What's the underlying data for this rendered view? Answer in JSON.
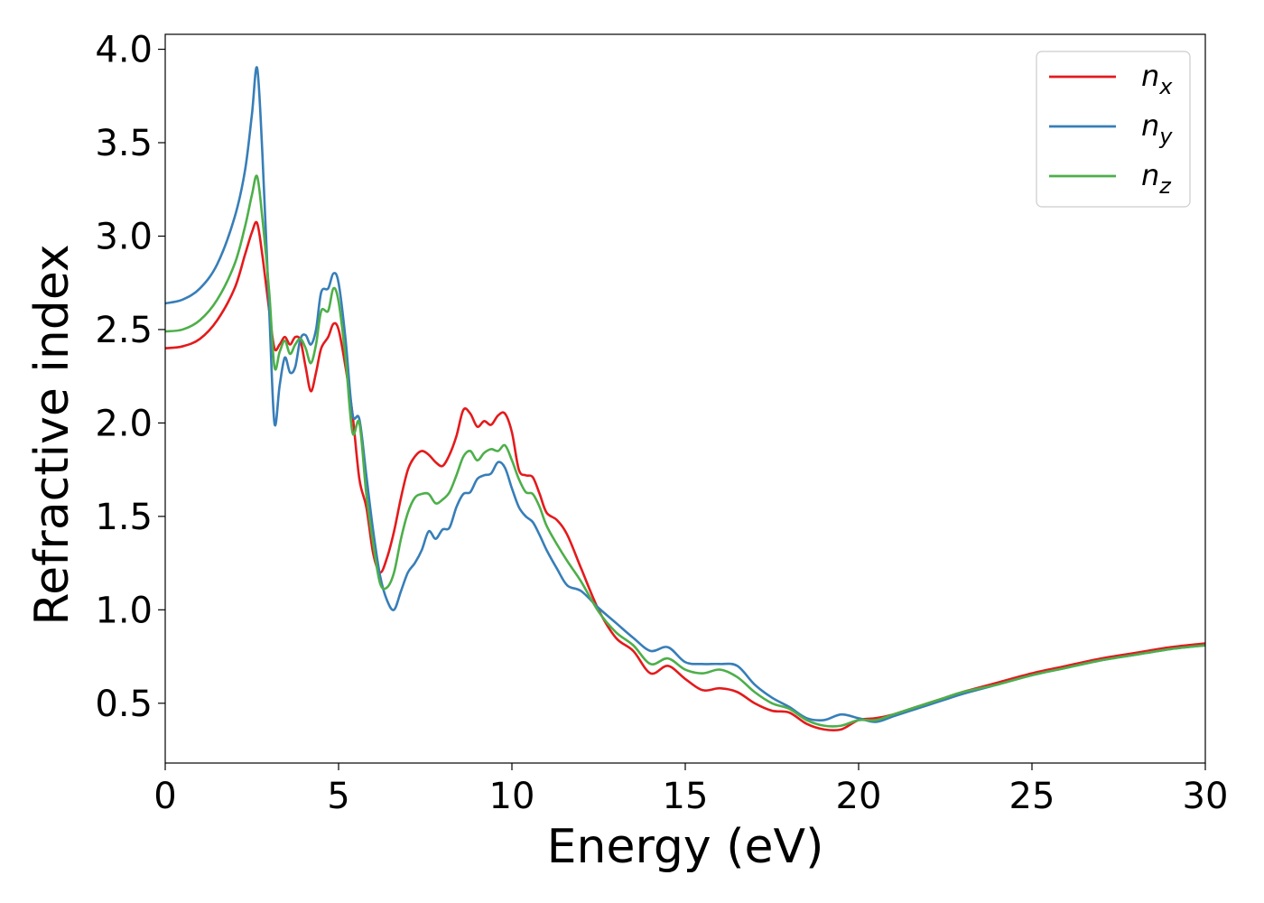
{
  "chart_data": {
    "type": "line",
    "title": "",
    "xlabel": "Energy (eV)",
    "ylabel": "Refractive index",
    "xlim": [
      0,
      30
    ],
    "ylim": [
      0.18,
      4.08
    ],
    "xticks": [
      0,
      5,
      10,
      15,
      20,
      25,
      30
    ],
    "xtick_labels": [
      "0",
      "5",
      "10",
      "15",
      "20",
      "25",
      "30"
    ],
    "yticks": [
      0.5,
      1.0,
      1.5,
      2.0,
      2.5,
      3.0,
      3.5,
      4.0
    ],
    "ytick_labels": [
      "0.5",
      "1.0",
      "1.5",
      "2.0",
      "2.5",
      "3.0",
      "3.5",
      "4.0"
    ],
    "grid": false,
    "legend": {
      "placement": "top-right",
      "entries": [
        {
          "base": "n",
          "sub": "x"
        },
        {
          "base": "n",
          "sub": "y"
        },
        {
          "base": "n",
          "sub": "z"
        }
      ]
    },
    "x": [
      0,
      0.5,
      1.0,
      1.5,
      2.0,
      2.3,
      2.5,
      2.65,
      2.8,
      3.0,
      3.15,
      3.3,
      3.45,
      3.6,
      3.75,
      3.9,
      4.05,
      4.2,
      4.35,
      4.5,
      4.7,
      4.85,
      5.0,
      5.2,
      5.4,
      5.6,
      5.8,
      6.0,
      6.2,
      6.4,
      6.6,
      6.8,
      7.0,
      7.2,
      7.4,
      7.6,
      7.8,
      8.0,
      8.2,
      8.4,
      8.6,
      8.8,
      9.0,
      9.2,
      9.4,
      9.6,
      9.8,
      10.0,
      10.2,
      10.4,
      10.6,
      10.8,
      11.0,
      11.3,
      11.6,
      12.0,
      12.5,
      13.0,
      13.5,
      14.0,
      14.5,
      15.0,
      15.5,
      16.0,
      16.5,
      17.0,
      17.5,
      18.0,
      18.5,
      19.0,
      19.5,
      20.0,
      20.5,
      21.0,
      21.5,
      22.0,
      22.5,
      23.0,
      24.0,
      25.0,
      26.0,
      27.0,
      28.0,
      29.0,
      30.0
    ],
    "series": [
      {
        "name": "nx",
        "color": "#e41a1c",
        "values": [
          2.4,
          2.41,
          2.45,
          2.55,
          2.72,
          2.9,
          3.02,
          3.07,
          2.9,
          2.6,
          2.4,
          2.42,
          2.46,
          2.42,
          2.46,
          2.44,
          2.3,
          2.17,
          2.27,
          2.4,
          2.46,
          2.53,
          2.5,
          2.3,
          2.05,
          1.7,
          1.55,
          1.3,
          1.2,
          1.28,
          1.42,
          1.6,
          1.75,
          1.82,
          1.85,
          1.83,
          1.79,
          1.77,
          1.83,
          1.93,
          2.07,
          2.05,
          1.98,
          2.01,
          1.99,
          2.04,
          2.05,
          1.95,
          1.75,
          1.72,
          1.71,
          1.62,
          1.52,
          1.48,
          1.4,
          1.22,
          1.0,
          0.85,
          0.78,
          0.66,
          0.7,
          0.63,
          0.57,
          0.58,
          0.56,
          0.5,
          0.46,
          0.45,
          0.39,
          0.36,
          0.36,
          0.41,
          0.42,
          0.44,
          0.47,
          0.5,
          0.53,
          0.56,
          0.61,
          0.66,
          0.7,
          0.74,
          0.77,
          0.8,
          0.82
        ]
      },
      {
        "name": "ny",
        "color": "#377eb8",
        "values": [
          2.64,
          2.66,
          2.72,
          2.85,
          3.1,
          3.35,
          3.65,
          3.9,
          3.45,
          2.6,
          2.0,
          2.2,
          2.35,
          2.27,
          2.3,
          2.45,
          2.47,
          2.42,
          2.5,
          2.7,
          2.72,
          2.8,
          2.75,
          2.45,
          2.05,
          2.02,
          1.72,
          1.42,
          1.18,
          1.05,
          1.0,
          1.1,
          1.2,
          1.25,
          1.32,
          1.42,
          1.38,
          1.43,
          1.44,
          1.55,
          1.62,
          1.63,
          1.7,
          1.72,
          1.73,
          1.79,
          1.76,
          1.65,
          1.55,
          1.5,
          1.47,
          1.4,
          1.32,
          1.22,
          1.13,
          1.1,
          1.01,
          0.93,
          0.85,
          0.78,
          0.8,
          0.72,
          0.71,
          0.71,
          0.7,
          0.6,
          0.53,
          0.48,
          0.42,
          0.41,
          0.44,
          0.42,
          0.4,
          0.43,
          0.46,
          0.49,
          0.52,
          0.55,
          0.6,
          0.65,
          0.69,
          0.73,
          0.76,
          0.79,
          0.81
        ]
      },
      {
        "name": "nz",
        "color": "#4daf4a",
        "values": [
          2.49,
          2.5,
          2.55,
          2.66,
          2.85,
          3.05,
          3.22,
          3.32,
          3.1,
          2.7,
          2.3,
          2.38,
          2.44,
          2.37,
          2.42,
          2.45,
          2.4,
          2.32,
          2.42,
          2.6,
          2.6,
          2.72,
          2.65,
          2.35,
          1.95,
          2.0,
          1.62,
          1.35,
          1.14,
          1.12,
          1.2,
          1.38,
          1.52,
          1.6,
          1.62,
          1.62,
          1.57,
          1.59,
          1.63,
          1.72,
          1.82,
          1.85,
          1.8,
          1.84,
          1.86,
          1.85,
          1.88,
          1.8,
          1.7,
          1.63,
          1.62,
          1.55,
          1.45,
          1.35,
          1.26,
          1.15,
          0.99,
          0.88,
          0.81,
          0.71,
          0.74,
          0.68,
          0.66,
          0.68,
          0.64,
          0.56,
          0.5,
          0.47,
          0.41,
          0.38,
          0.38,
          0.41,
          0.41,
          0.44,
          0.47,
          0.5,
          0.53,
          0.56,
          0.6,
          0.65,
          0.69,
          0.73,
          0.76,
          0.79,
          0.81
        ]
      }
    ]
  }
}
